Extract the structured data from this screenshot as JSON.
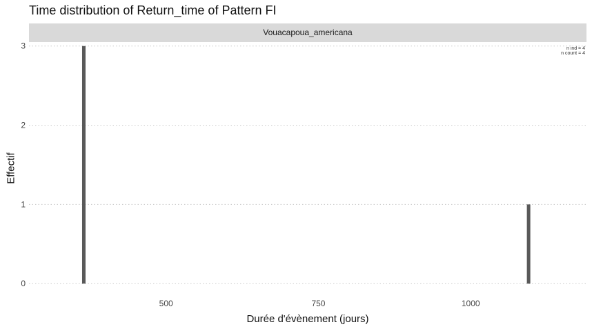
{
  "title": "Time distribution of Return_time of Pattern FI",
  "facet_label": "Vouacapoua_americana",
  "annotation": {
    "n_ind": "n ind = 4",
    "n_count": "n count = 4"
  },
  "chart_data": {
    "type": "bar",
    "title": "Time distribution of Return_time of Pattern FI",
    "xlabel": "Durée d'évènement (jours)",
    "ylabel": "Effectif",
    "x_ticks": [
      500,
      750,
      1000
    ],
    "y_ticks": [
      0,
      1,
      2,
      3
    ],
    "xlim": [
      275,
      1190
    ],
    "ylim": [
      -0.12,
      3.05
    ],
    "x": [
      365,
      1095
    ],
    "values": [
      3,
      1
    ],
    "bar_color": "#595959",
    "grid": "dotted horizontal"
  }
}
